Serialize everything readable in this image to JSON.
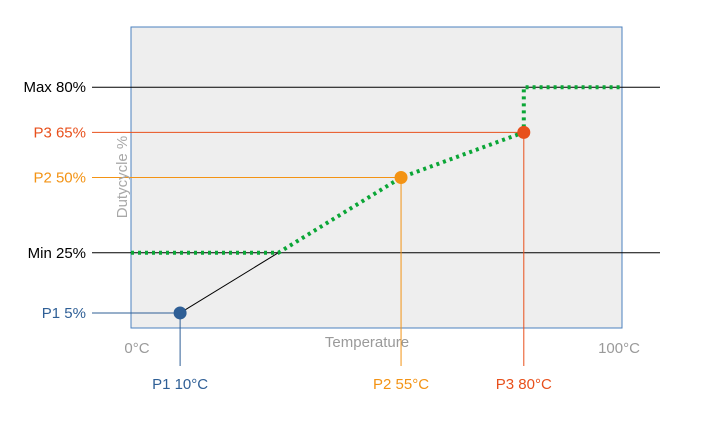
{
  "chart_data": {
    "type": "line",
    "xlabel": "Temperature",
    "ylabel": "Dutycycle %",
    "x_tick_labels": {
      "min": "0°C",
      "max": "100°C"
    },
    "xlim": [
      0,
      100
    ],
    "ylim": [
      0,
      100
    ],
    "limits": [
      {
        "name": "Max",
        "value": 80,
        "label": "Max 80%",
        "color": "#000000"
      },
      {
        "name": "Min",
        "value": 25,
        "label": "Min 25%",
        "color": "#000000"
      }
    ],
    "points": [
      {
        "name": "P1",
        "x": 10,
        "y": 5,
        "y_label": "P1 5%",
        "x_label": "P1 10°C",
        "color": "#2f5f96",
        "fill": "#2f5f96"
      },
      {
        "name": "P2",
        "x": 55,
        "y": 50,
        "y_label": "P2 50%",
        "x_label": "P2 55°C",
        "color": "#f39314",
        "fill": "#f39314"
      },
      {
        "name": "P3",
        "x": 80,
        "y": 65,
        "y_label": "P3 65%",
        "x_label": "P3 80°C",
        "color": "#e8501c",
        "fill": "#e8501c"
      }
    ],
    "curve_color": "#0aa636",
    "plot_background": "#eeeeee",
    "plot_border": "#4b80bf"
  }
}
